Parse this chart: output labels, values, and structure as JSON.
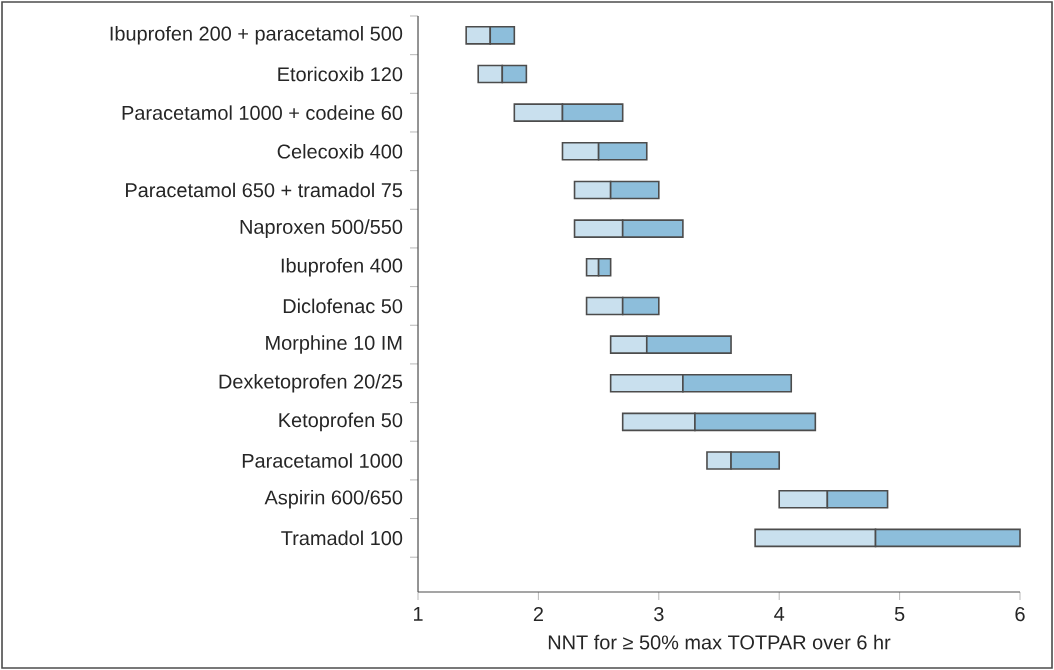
{
  "chart_data": {
    "type": "bar",
    "orientation": "horizontal",
    "categories": [
      "Ibuprofen 200 + paracetamol 500",
      "Etoricoxib 120",
      "Paracetamol 1000 + codeine 60",
      "Celecoxib 400",
      "Paracetamol 650 + tramadol 75",
      "Naproxen 500/550",
      "Ibuprofen 400",
      "Diclofenac 50",
      "Morphine 10 IM",
      "Dexketoprofen 20/25",
      "Ketoprofen 50",
      "Paracetamol 1000",
      "Aspirin 600/650",
      "Tramadol 100"
    ],
    "series": [
      {
        "color": "#c9e0ee",
        "base": [
          1.4,
          1.5,
          1.8,
          2.2,
          2.3,
          2.3,
          2.4,
          2.4,
          2.6,
          2.6,
          2.7,
          3.4,
          4.0,
          3.8
        ],
        "values": [
          0.2,
          0.2,
          0.4,
          0.3,
          0.3,
          0.4,
          0.1,
          0.3,
          0.3,
          0.6,
          0.6,
          0.2,
          0.4,
          1.0
        ]
      },
      {
        "color": "#8dbedb",
        "base": [
          1.6,
          1.7,
          2.2,
          2.5,
          2.6,
          2.7,
          2.5,
          2.7,
          2.9,
          3.2,
          3.3,
          3.6,
          4.4,
          4.8
        ],
        "values": [
          0.2,
          0.2,
          0.5,
          0.4,
          0.4,
          0.5,
          0.1,
          0.3,
          0.7,
          0.9,
          1.0,
          0.4,
          0.5,
          1.2
        ]
      }
    ],
    "xlabel": "NNT for ≥ 50% max TOTPAR over 6 hr",
    "xlim": [
      1,
      6
    ],
    "xticks": [
      1,
      2,
      3,
      4,
      5,
      6
    ]
  }
}
